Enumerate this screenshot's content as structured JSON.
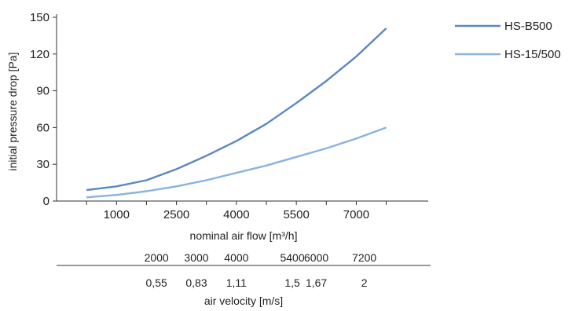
{
  "chart_data": {
    "type": "line",
    "ylabel": "initial pressure drop [Pa]",
    "xlabel": "nominal air flow [m³/h]",
    "xlim": [
      -500,
      8800
    ],
    "ylim": [
      0,
      150
    ],
    "x_ticks": [
      1000,
      2500,
      4000,
      5500,
      7000
    ],
    "x_tick_labels": [
      "1000",
      "2500",
      "4000",
      "5500",
      "7000"
    ],
    "y_ticks": [
      0,
      30,
      60,
      90,
      120,
      150
    ],
    "y_tick_labels": [
      "0",
      "30",
      "60",
      "90",
      "120",
      "150"
    ],
    "grid": false,
    "legend_position": "top-right",
    "series": [
      {
        "name": "HS-B500",
        "color": "#5b87c2",
        "x": [
          250,
          1000,
          1750,
          2500,
          3250,
          4000,
          4750,
          5500,
          6250,
          7000,
          7750
        ],
        "y": [
          9,
          12,
          17,
          26,
          37,
          49,
          63,
          80,
          98,
          118,
          141
        ]
      },
      {
        "name": "HS-15/500",
        "color": "#86b3e2",
        "x": [
          250,
          1000,
          1750,
          2500,
          3250,
          4000,
          4750,
          5500,
          6250,
          7000,
          7750
        ],
        "y": [
          3,
          5,
          8,
          12,
          17,
          23,
          29,
          36,
          43,
          51,
          60
        ]
      }
    ],
    "secondary_axis": {
      "flow_labels": [
        "2000",
        "3000",
        "4000",
        "5400",
        "6000",
        "7200"
      ],
      "flow_values": [
        2000,
        3000,
        4000,
        5400,
        6000,
        7200
      ],
      "velocity_labels": [
        "0,55",
        "0,83",
        "1,11",
        "1,5",
        "1,67",
        "2"
      ],
      "label": "air velocity [m/s]"
    }
  }
}
